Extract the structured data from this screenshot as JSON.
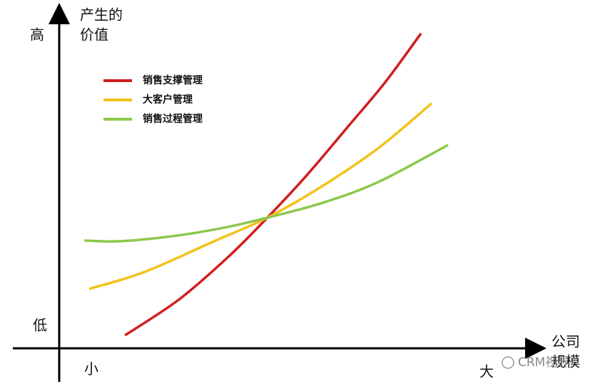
{
  "chart_data": {
    "type": "line",
    "ylabel": [
      "产生的",
      "价值"
    ],
    "y_high": "高",
    "y_low": "低",
    "xlabel": [
      "公司",
      "规模"
    ],
    "x_small": "小",
    "x_large": "大",
    "watermark": "CRM视界",
    "xlim": [
      0,
      100
    ],
    "ylim": [
      0,
      100
    ],
    "legend": "top-left",
    "series": [
      {
        "name": "销售支撑管理",
        "color": "#d01f1f",
        "x": [
          13.6,
          24.7,
          35.0,
          43.1,
          51.3,
          60.1,
          67.5,
          74.9
        ],
        "values": [
          3.8,
          14.2,
          26.8,
          38.3,
          50.8,
          65.5,
          78.0,
          92.3
        ]
      },
      {
        "name": "大客户管理",
        "color": "#f2c21a",
        "x": [
          6.2,
          17.7,
          32.1,
          43.1,
          54.2,
          66.0,
          77.1
        ],
        "values": [
          17.4,
          22.4,
          31.4,
          38.3,
          47.3,
          58.6,
          71.8
        ]
      },
      {
        "name": "销售过程管理",
        "color": "#8cc84b",
        "x": [
          5.2,
          12.9,
          24.7,
          35.0,
          43.1,
          54.2,
          66.0,
          80.5
        ],
        "values": [
          31.6,
          31.4,
          33.1,
          35.6,
          38.3,
          42.5,
          48.7,
          59.6
        ]
      }
    ]
  }
}
